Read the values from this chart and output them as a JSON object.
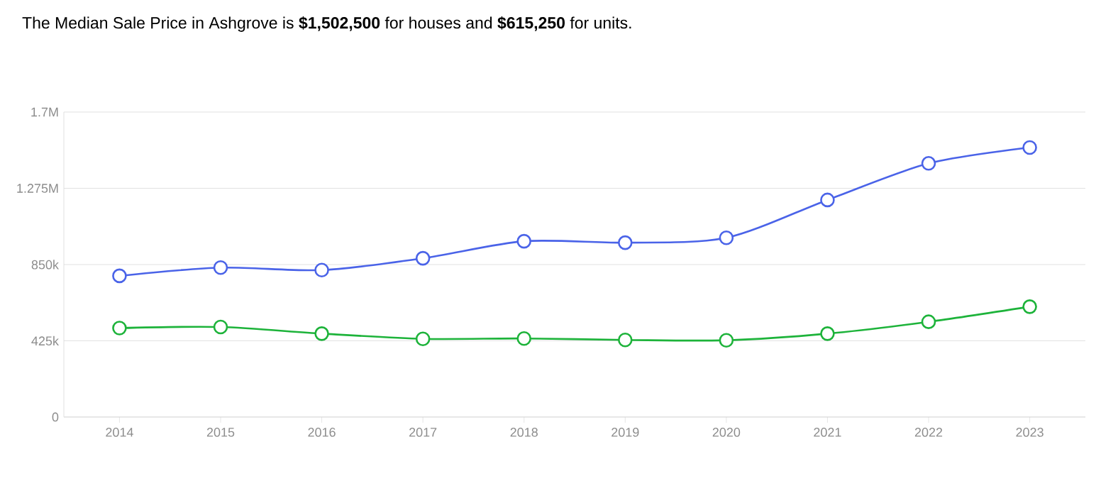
{
  "chart_data": {
    "type": "line",
    "title": "The Median Sale Price in Ashgrove is **$1,502,500** for houses and **$615,250** for units.",
    "categories": [
      "2014",
      "2015",
      "2016",
      "2017",
      "2018",
      "2019",
      "2020",
      "2021",
      "2022",
      "2023"
    ],
    "series": [
      {
        "color": "#4a63e8",
        "values": [
          787000,
          833000,
          819000,
          885000,
          980000,
          972000,
          999000,
          1210000,
          1414000,
          1502500
        ]
      },
      {
        "color": "#1db33a",
        "values": [
          496000,
          502000,
          465000,
          436000,
          438000,
          430000,
          428000,
          465000,
          531000,
          615250
        ]
      }
    ],
    "ylim": [
      0,
      1700000
    ],
    "yticks": [
      0,
      {
        "value": 425000,
        "label": "425k"
      },
      {
        "value": 850000,
        "label": "850k"
      },
      {
        "value": 1275000,
        "label": "1.275M"
      },
      {
        "value": 1700000,
        "label": "1.7M"
      }
    ],
    "grid": "y",
    "marker": "circle",
    "line_style": "solid"
  }
}
